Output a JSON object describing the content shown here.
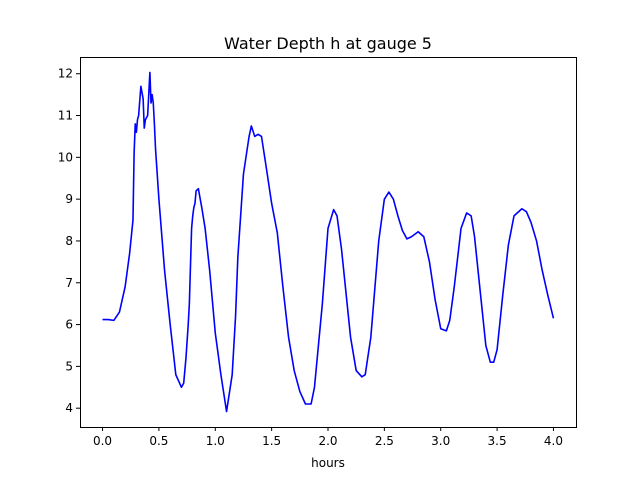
{
  "chart_data": {
    "type": "line",
    "title": "Water Depth h at gauge 5",
    "xlabel": "hours",
    "ylabel": "",
    "xlim": [
      -0.2,
      4.2
    ],
    "ylim": [
      3.55,
      12.4
    ],
    "xticks": [
      0.0,
      0.5,
      1.0,
      1.5,
      2.0,
      2.5,
      3.0,
      3.5,
      4.0
    ],
    "xtick_labels": [
      "0.0",
      "0.5",
      "1.0",
      "1.5",
      "2.0",
      "2.5",
      "3.0",
      "3.5",
      "4.0"
    ],
    "yticks": [
      4,
      5,
      6,
      7,
      8,
      9,
      10,
      11,
      12
    ],
    "ytick_labels": [
      "4",
      "5",
      "6",
      "7",
      "8",
      "9",
      "10",
      "11",
      "12"
    ],
    "grid": false,
    "series": [
      {
        "color": "#0000ff",
        "x": [
          0.0,
          0.05,
          0.1,
          0.15,
          0.2,
          0.24,
          0.27,
          0.28,
          0.29,
          0.3,
          0.31,
          0.32,
          0.34,
          0.36,
          0.37,
          0.38,
          0.4,
          0.42,
          0.43,
          0.44,
          0.45,
          0.46,
          0.47,
          0.5,
          0.55,
          0.6,
          0.65,
          0.7,
          0.72,
          0.74,
          0.76,
          0.77,
          0.78,
          0.79,
          0.8,
          0.81,
          0.82,
          0.83,
          0.85,
          0.88,
          0.91,
          0.95,
          1.0,
          1.05,
          1.1,
          1.15,
          1.18,
          1.2,
          1.25,
          1.3,
          1.32,
          1.35,
          1.38,
          1.41,
          1.45,
          1.5,
          1.55,
          1.6,
          1.65,
          1.7,
          1.75,
          1.8,
          1.85,
          1.88,
          1.95,
          2.0,
          2.05,
          2.08,
          2.12,
          2.2,
          2.25,
          2.3,
          2.33,
          2.38,
          2.45,
          2.5,
          2.54,
          2.58,
          2.62,
          2.66,
          2.7,
          2.74,
          2.8,
          2.85,
          2.9,
          2.95,
          3.0,
          3.05,
          3.08,
          3.12,
          3.18,
          3.23,
          3.27,
          3.3,
          3.35,
          3.4,
          3.44,
          3.47,
          3.5,
          3.55,
          3.6,
          3.65,
          3.72,
          3.76,
          3.8,
          3.85,
          3.9,
          3.95,
          4.0
        ],
        "y": [
          6.12,
          6.12,
          6.1,
          6.3,
          6.9,
          7.7,
          8.5,
          10.1,
          10.8,
          10.6,
          10.9,
          11.0,
          11.7,
          11.4,
          10.7,
          10.9,
          11.0,
          12.03,
          11.3,
          11.5,
          11.3,
          10.8,
          10.2,
          9.0,
          7.3,
          6.0,
          4.8,
          4.5,
          4.6,
          5.2,
          6.0,
          6.5,
          7.4,
          8.3,
          8.6,
          8.8,
          8.9,
          9.2,
          9.25,
          8.8,
          8.3,
          7.3,
          5.8,
          4.8,
          3.92,
          4.8,
          6.2,
          7.6,
          9.6,
          10.5,
          10.75,
          10.5,
          10.55,
          10.5,
          9.8,
          8.9,
          8.2,
          6.9,
          5.7,
          4.9,
          4.4,
          4.1,
          4.1,
          4.5,
          6.5,
          8.3,
          8.75,
          8.6,
          7.8,
          5.7,
          4.9,
          4.75,
          4.8,
          5.7,
          8.0,
          9.0,
          9.17,
          9.0,
          8.6,
          8.25,
          8.05,
          8.1,
          8.22,
          8.1,
          7.5,
          6.6,
          5.9,
          5.85,
          6.1,
          6.9,
          8.3,
          8.67,
          8.6,
          8.1,
          6.8,
          5.5,
          5.1,
          5.1,
          5.4,
          6.7,
          7.9,
          8.6,
          8.77,
          8.7,
          8.45,
          8.0,
          7.3,
          6.7,
          6.15
        ]
      }
    ]
  }
}
